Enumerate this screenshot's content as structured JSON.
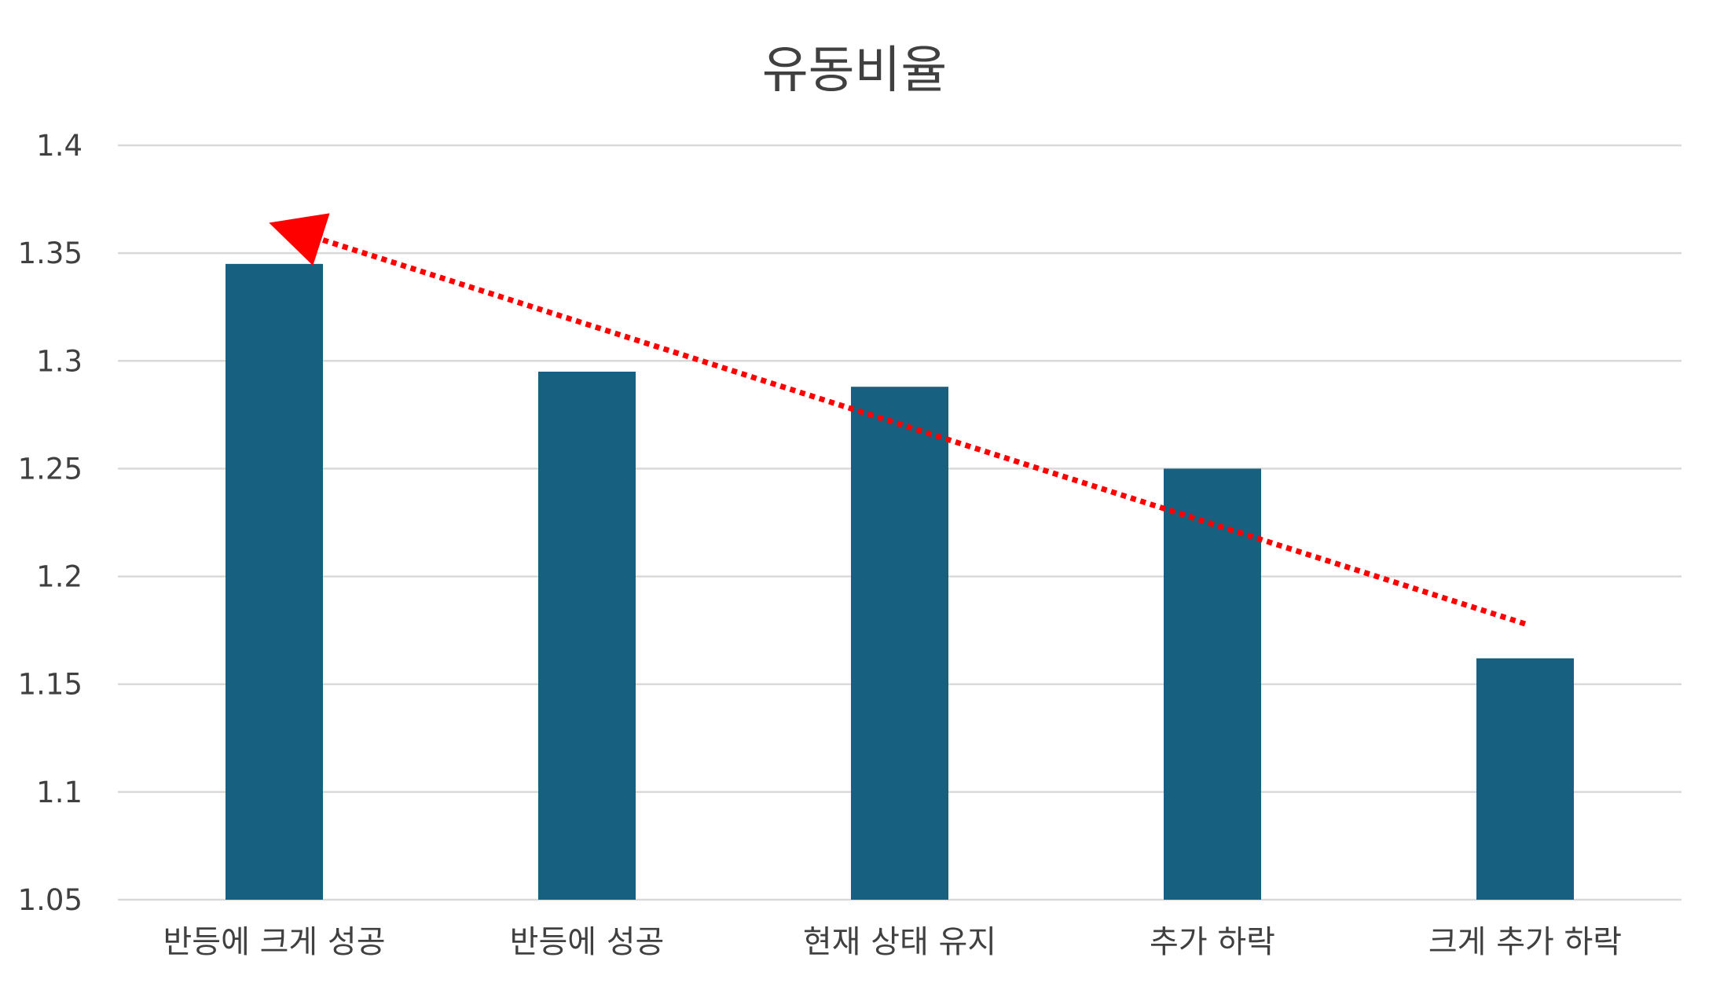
{
  "chart_data": {
    "type": "bar",
    "title": "유동비율",
    "categories": [
      "반등에 크게 성공",
      "반등에 성공",
      "현재 상태 유지",
      "추가 하락",
      "크게 추가 하락"
    ],
    "values": [
      1.345,
      1.295,
      1.288,
      1.25,
      1.162
    ],
    "ylim": [
      1.05,
      1.4
    ],
    "yticks": [
      "1.05",
      "1.1",
      "1.15",
      "1.2",
      "1.25",
      "1.3",
      "1.35",
      "1.4"
    ],
    "xlabel": "",
    "ylabel": "",
    "grid": true,
    "legend": "none",
    "bar_color": "#17607f",
    "grid_color": "#d9d9d9",
    "trend_arrow": {
      "from": {
        "category": "크게 추가 하락",
        "value": 1.178
      },
      "to": {
        "category": "반등에 크게 성공",
        "value": 1.361
      },
      "style": "dotted",
      "color": "#ff0000"
    }
  }
}
